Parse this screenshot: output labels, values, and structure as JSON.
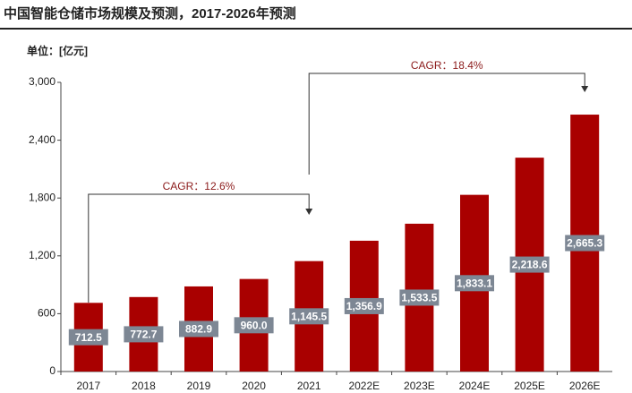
{
  "chart_data": {
    "type": "bar",
    "title": "中国智能仓储市场规模及预测，2017-2026年预测",
    "unit_label": "单位：[亿元]",
    "categories": [
      "2017",
      "2018",
      "2019",
      "2020",
      "2021",
      "2022E",
      "2023E",
      "2024E",
      "2025E",
      "2026E"
    ],
    "values": [
      712.5,
      772.7,
      882.9,
      960.0,
      1145.5,
      1356.9,
      1533.5,
      1833.1,
      2218.6,
      2665.3
    ],
    "value_labels": [
      "712.5",
      "772.7",
      "882.9",
      "960.0",
      "1,145.5",
      "1,356.9",
      "1,533.5",
      "1,833.1",
      "2,218.6",
      "2,665.3"
    ],
    "color": "#a90000",
    "ylim": [
      0,
      3000
    ],
    "yticks": [
      0,
      600,
      {
        "value": 1200,
        "label": "1,200"
      },
      {
        "value": 1800,
        "label": "1,800"
      },
      {
        "value": 2400,
        "label": "2,400"
      },
      {
        "value": 3000,
        "label": "3,000"
      }
    ],
    "annotations": [
      "CAGR：12.6%",
      "CAGR：18.4%"
    ]
  }
}
